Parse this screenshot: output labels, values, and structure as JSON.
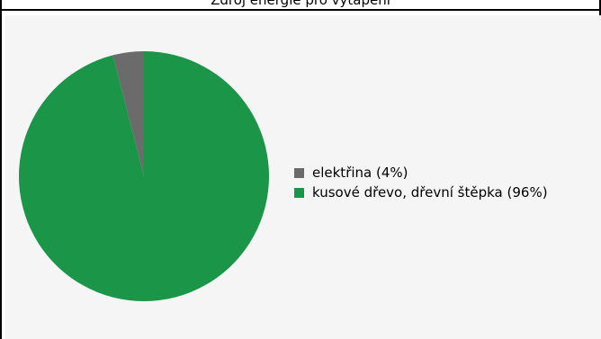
{
  "header": {
    "title": "Zdroj energie pro vytápění"
  },
  "chart_data": {
    "type": "pie",
    "title": "",
    "slices": [
      {
        "label": "elektřina (4%)",
        "value": 4,
        "color": "#6b6b6b"
      },
      {
        "label": "kusové dřevo, dřevní štěpka (96%)",
        "value": 96,
        "color": "#1b9648"
      }
    ],
    "start_angle_deg": 90,
    "direction": "counterclockwise",
    "legend_placement": "right"
  },
  "legend": {
    "items": [
      {
        "label": "elektřina (4%)",
        "color": "#6b6b6b"
      },
      {
        "label": "kusové dřevo, dřevní štěpka (96%)",
        "color": "#1b9648"
      }
    ]
  },
  "colors": {
    "panel_background": "#f5f5f5",
    "frame": "#000000"
  }
}
